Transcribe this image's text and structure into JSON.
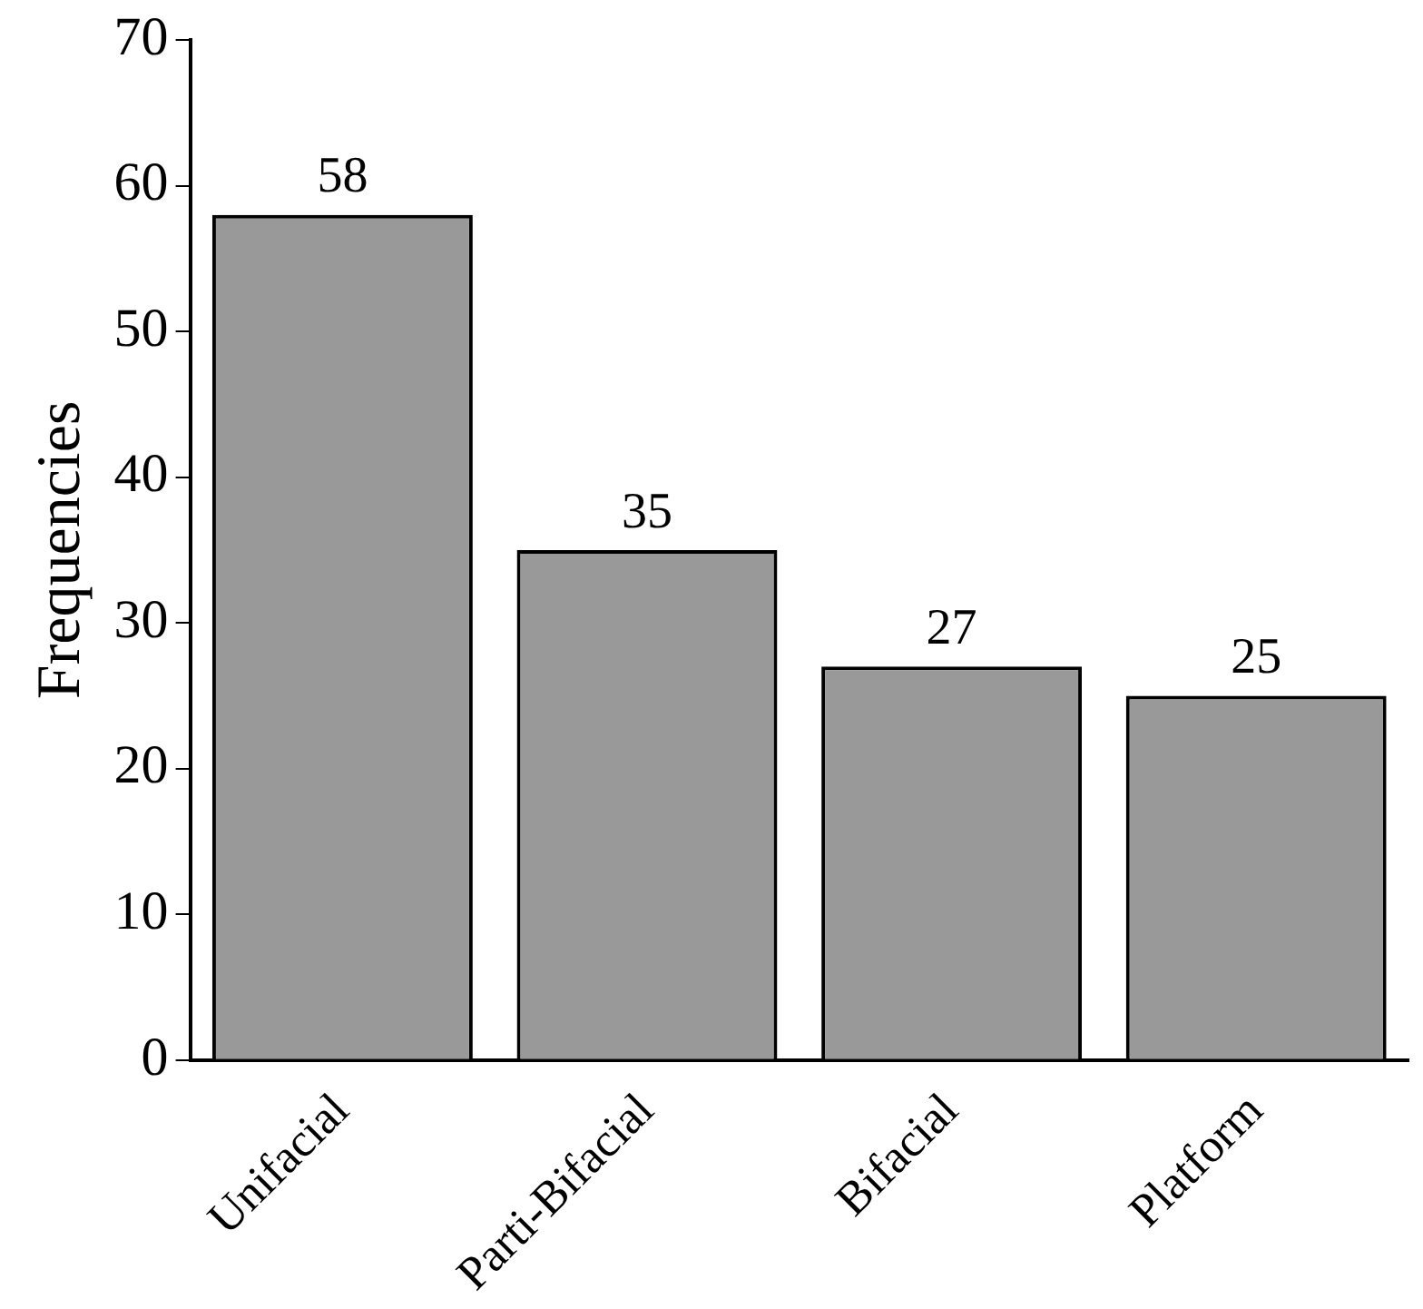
{
  "chart_data": {
    "type": "bar",
    "ylabel": "Frequencies",
    "categories": [
      "Unifacial",
      "Parti-Bifacial",
      "Bifacial",
      "Platform"
    ],
    "values": [
      58,
      35,
      27,
      25
    ],
    "color": "#999999",
    "ylim": [
      0,
      70
    ],
    "yticks": [
      0,
      10,
      20,
      30,
      40,
      50,
      60,
      70
    ],
    "grid": false,
    "legend": false,
    "data_labels": true
  }
}
